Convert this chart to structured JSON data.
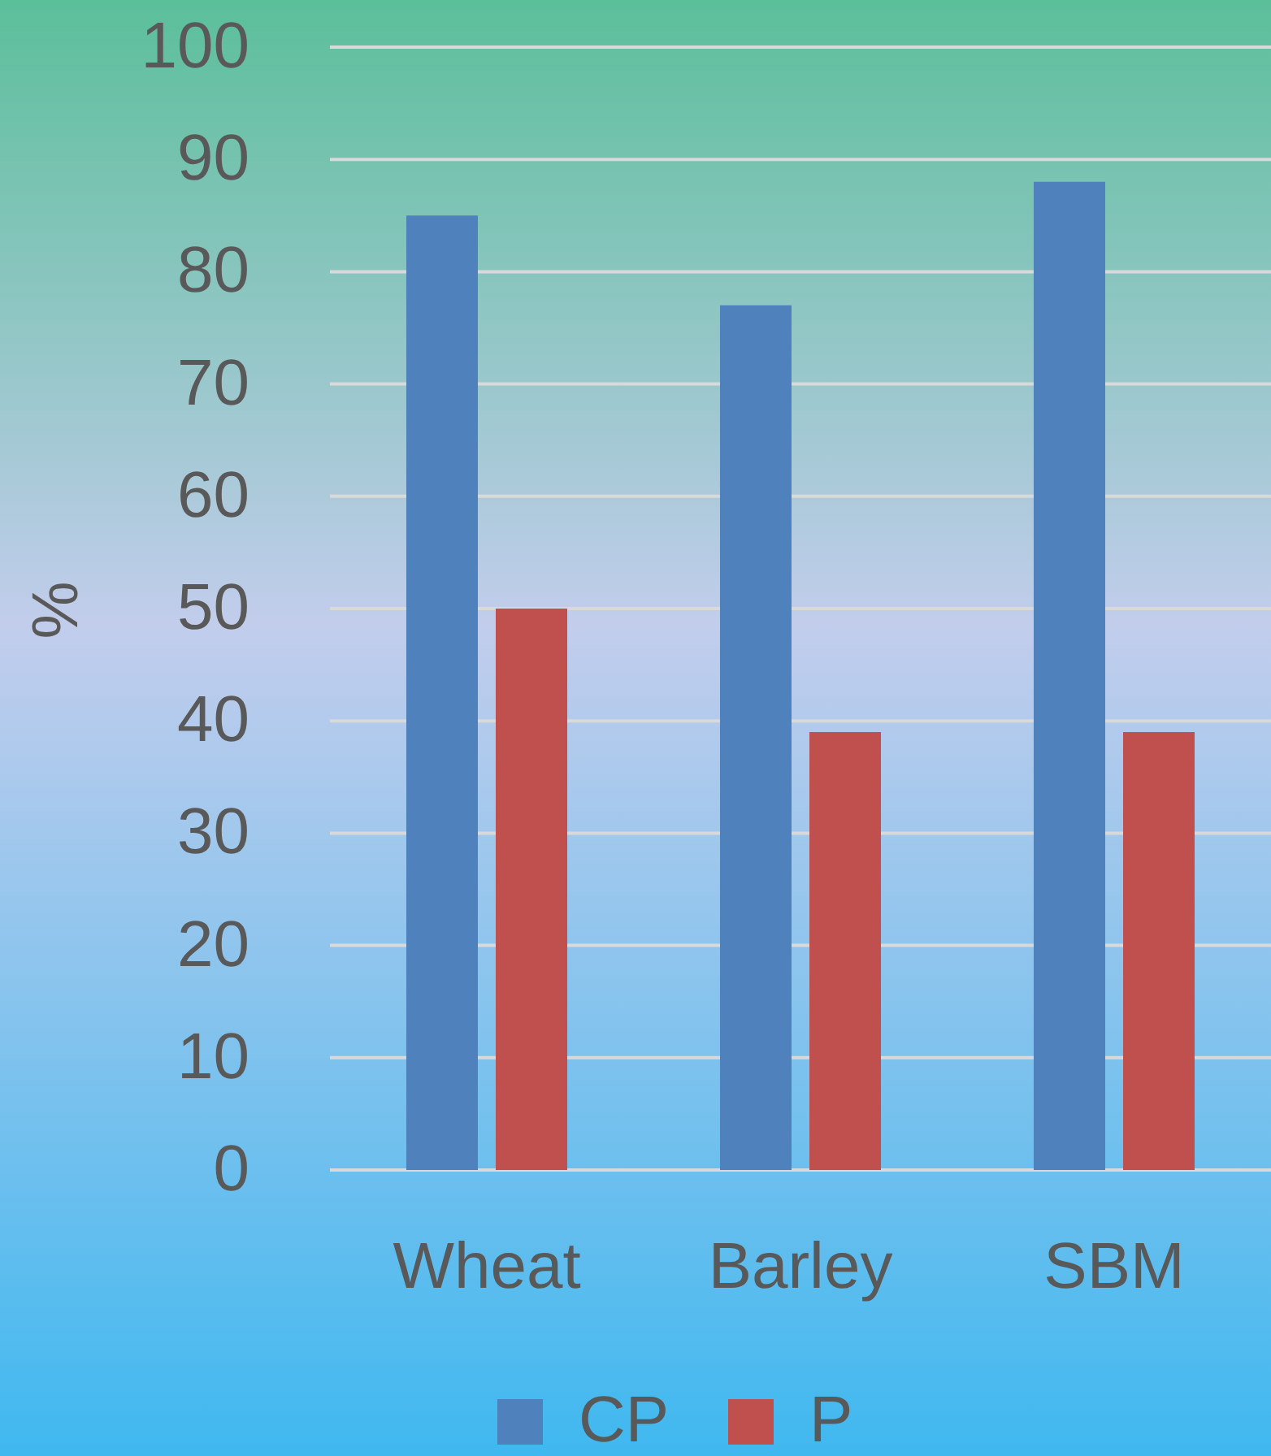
{
  "chart_data": {
    "type": "bar",
    "categories": [
      "Wheat",
      "Barley",
      "SBM"
    ],
    "series": [
      {
        "name": "CP",
        "color": "#4f81bd",
        "values": [
          85,
          77,
          88
        ]
      },
      {
        "name": "P",
        "color": "#c0504d",
        "values": [
          50,
          39,
          39
        ]
      }
    ],
    "ylabel": "%",
    "ylim": [
      0,
      100
    ],
    "yticks": [
      0,
      10,
      20,
      30,
      40,
      50,
      60,
      70,
      80,
      90,
      100
    ],
    "grid": "y",
    "legend": "bottom"
  }
}
